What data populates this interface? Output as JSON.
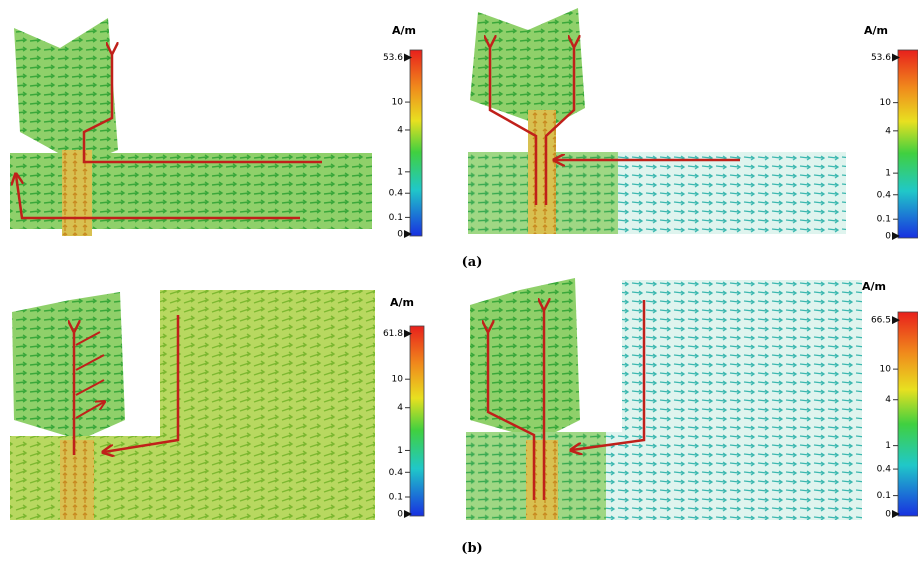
{
  "figure": {
    "panels": [
      {
        "unit": "A/m",
        "ticks": [
          53.6,
          10,
          4,
          1,
          0.4,
          0.1,
          0
        ]
      },
      {
        "unit": "A/m",
        "ticks": [
          53.6,
          10,
          4,
          1,
          0.4,
          0.1,
          0
        ]
      },
      {
        "unit": "A/m",
        "ticks": [
          61.8,
          10,
          4,
          1,
          0.4,
          0.1,
          0
        ]
      },
      {
        "unit": "A/m",
        "ticks": [
          66.5,
          10,
          4,
          1,
          0.4,
          0.1,
          0
        ]
      }
    ],
    "captions": [
      "(a)",
      "(b)"
    ]
  }
}
